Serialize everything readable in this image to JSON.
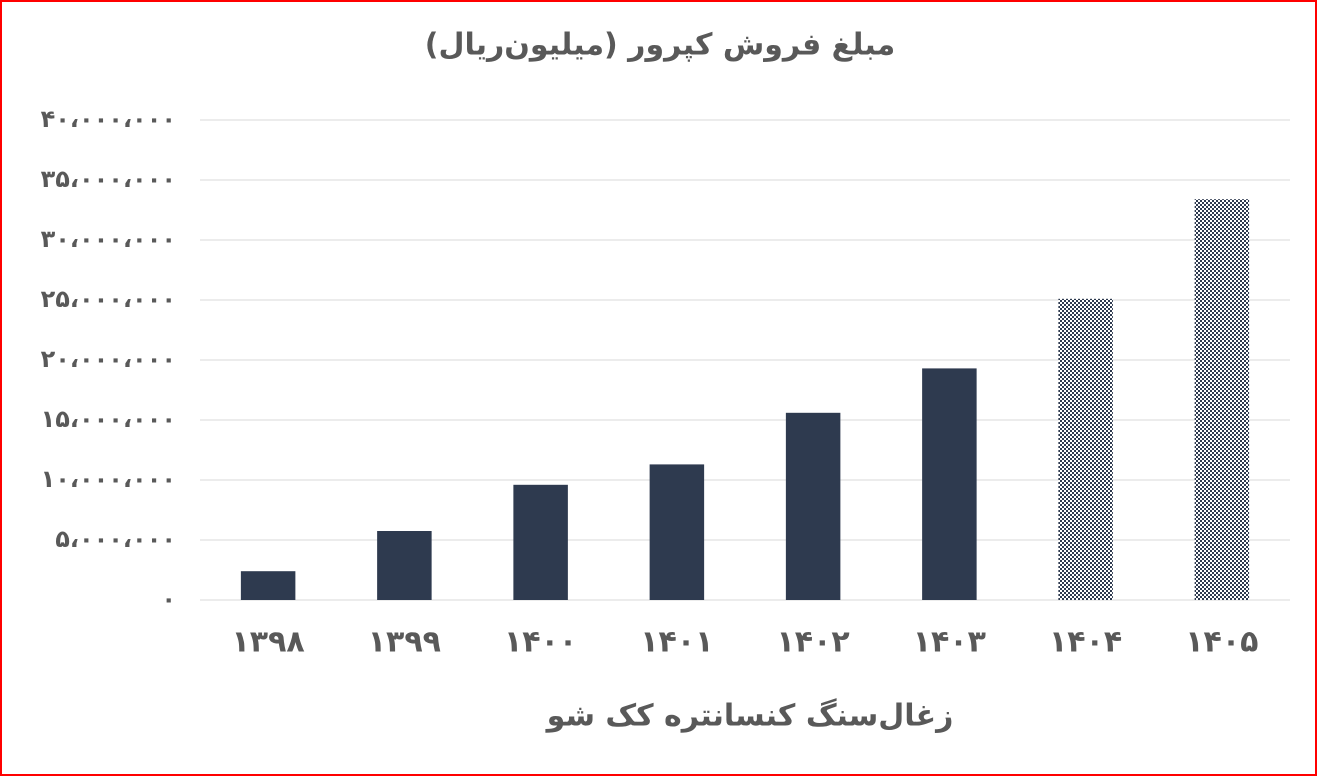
{
  "chart_data": {
    "type": "bar",
    "title": "مبلغ فروش کپرور (میلیون‌ریال)",
    "x_label": "زغال‌سنگ کنسانتره کک شو",
    "categories": [
      "۱۳۹۸",
      "۱۳۹۹",
      "۱۴۰۰",
      "۱۴۰۱",
      "۱۴۰۲",
      "۱۴۰۳",
      "۱۴۰۴",
      "۱۴۰۵"
    ],
    "values": [
      2400000,
      5750000,
      9600000,
      11300000,
      15600000,
      19300000,
      25100000,
      33400000
    ],
    "color": "#2e3a4f",
    "fill_styles": [
      "solid",
      "solid",
      "solid",
      "solid",
      "solid",
      "solid",
      "checker",
      "checker"
    ],
    "ylim": [
      0,
      40000000
    ],
    "yticks": [
      {
        "value": 0,
        "label": "۰"
      },
      {
        "value": 5000000,
        "label": "۵،۰۰۰،۰۰۰"
      },
      {
        "value": 10000000,
        "label": "۱۰،۰۰۰،۰۰۰"
      },
      {
        "value": 15000000,
        "label": "۱۵،۰۰۰،۰۰۰"
      },
      {
        "value": 20000000,
        "label": "۲۰،۰۰۰،۰۰۰"
      },
      {
        "value": 25000000,
        "label": "۲۵،۰۰۰،۰۰۰"
      },
      {
        "value": 30000000,
        "label": "۳۰،۰۰۰،۰۰۰"
      },
      {
        "value": 35000000,
        "label": "۳۵،۰۰۰،۰۰۰"
      },
      {
        "value": 40000000,
        "label": "۴۰،۰۰۰،۰۰۰"
      }
    ],
    "grid": true
  }
}
